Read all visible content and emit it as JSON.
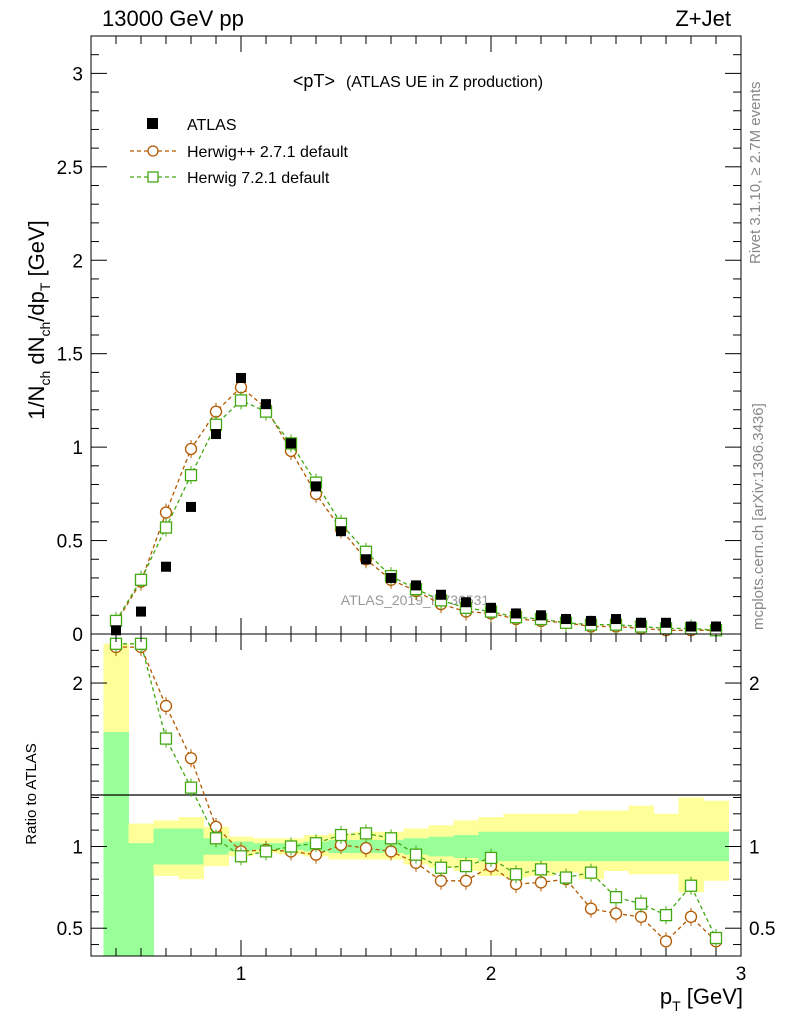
{
  "header": {
    "left_title": "13000 GeV pp",
    "right_title": "Z+Jet"
  },
  "side_labels": {
    "rivet": "Rivet 3.1.10, ≥ 2.7M events",
    "mcplots": "mcplots.cern.ch [arXiv:1306.3436]"
  },
  "colors": {
    "atlas": "#000000",
    "herwig_pp": "#b35900",
    "herwig7": "#44a814",
    "band_inner": "#99ff99",
    "band_outer": "#ffff99"
  },
  "chart_data": [
    {
      "type": "scatter",
      "panel": "main",
      "title": "<pT>",
      "subtitle": "(ATLAS UE in Z production)",
      "ylabel": {
        "base": "1/N",
        "sub1": "ch",
        "mid": " dN",
        "sub2": "ch",
        "mid2": "/dp",
        "sub3": "T",
        "unit": " [GeV]"
      },
      "xlim": [
        0.4,
        3.0
      ],
      "ylim": [
        0,
        3.2
      ],
      "yticks": [
        "0",
        "0.5",
        "1",
        "1.5",
        "2",
        "2.5",
        "3"
      ],
      "ytick_values": [
        0,
        0.5,
        1,
        1.5,
        2,
        2.5,
        3
      ],
      "watermark": "ATLAS_2019_I1736531",
      "legend": {
        "position": "top-left",
        "entries": [
          "ATLAS",
          "Herwig++ 2.7.1 default",
          "Herwig 7.2.1 default"
        ]
      },
      "x": [
        0.5,
        0.6,
        0.7,
        0.8,
        0.9,
        1.0,
        1.1,
        1.2,
        1.3,
        1.4,
        1.5,
        1.6,
        1.7,
        1.8,
        1.9,
        2.0,
        2.1,
        2.2,
        2.3,
        2.4,
        2.5,
        2.6,
        2.7,
        2.8,
        2.9
      ],
      "series": [
        {
          "name": "ATLAS",
          "values": [
            0.02,
            0.12,
            0.36,
            0.68,
            1.07,
            1.37,
            1.23,
            1.02,
            0.79,
            0.55,
            0.4,
            0.3,
            0.26,
            0.21,
            0.17,
            0.14,
            0.11,
            0.1,
            0.08,
            0.07,
            0.08,
            0.06,
            0.06,
            0.04,
            0.04
          ]
        },
        {
          "name": "Herwig++ 2.7.1 default",
          "values": [
            0.06,
            0.28,
            0.65,
            0.99,
            1.19,
            1.32,
            1.21,
            0.98,
            0.75,
            0.56,
            0.4,
            0.29,
            0.23,
            0.16,
            0.12,
            0.11,
            0.08,
            0.07,
            0.06,
            0.04,
            0.04,
            0.03,
            0.02,
            0.02,
            0.02
          ]
        },
        {
          "name": "Herwig 7.2.1 default",
          "values": [
            0.07,
            0.29,
            0.57,
            0.85,
            1.12,
            1.25,
            1.19,
            1.02,
            0.81,
            0.59,
            0.44,
            0.31,
            0.24,
            0.18,
            0.14,
            0.12,
            0.09,
            0.08,
            0.06,
            0.05,
            0.05,
            0.04,
            0.03,
            0.03,
            0.02
          ]
        }
      ]
    },
    {
      "type": "line",
      "panel": "ratio",
      "ylabel": "Ratio to ATLAS",
      "xlabel": {
        "base": "p",
        "sub": "T",
        "unit": " [GeV]"
      },
      "xlim": [
        0.4,
        3.0
      ],
      "ylim": [
        0.33,
        2.3
      ],
      "xticks": [
        "1",
        "2",
        "3"
      ],
      "xtick_values": [
        1,
        2,
        3
      ],
      "yticks": [
        "0.5",
        "1",
        "2"
      ],
      "ytick_values": [
        0.5,
        1,
        2
      ],
      "x": [
        0.5,
        0.6,
        0.7,
        0.8,
        0.9,
        1.0,
        1.1,
        1.2,
        1.3,
        1.4,
        1.5,
        1.6,
        1.7,
        1.8,
        1.9,
        2.0,
        2.1,
        2.2,
        2.3,
        2.4,
        2.5,
        2.6,
        2.7,
        2.8,
        2.9
      ],
      "bin_edges": [
        0.45,
        0.55,
        0.65,
        0.75,
        0.85,
        0.95,
        1.05,
        1.15,
        1.25,
        1.35,
        1.45,
        1.55,
        1.65,
        1.75,
        1.85,
        1.95,
        2.05,
        2.15,
        2.25,
        2.35,
        2.45,
        2.55,
        2.65,
        2.75,
        2.85,
        2.95
      ],
      "band_inner": {
        "lower": [
          0.33,
          0.33,
          0.89,
          0.89,
          0.95,
          0.97,
          0.98,
          0.98,
          0.97,
          0.96,
          0.96,
          0.96,
          0.95,
          0.94,
          0.93,
          0.91,
          0.91,
          0.91,
          0.91,
          0.91,
          0.91,
          0.91,
          0.91,
          0.91,
          0.91
        ],
        "upper": [
          1.7,
          1.02,
          1.11,
          1.11,
          1.05,
          1.03,
          1.02,
          1.02,
          1.03,
          1.04,
          1.04,
          1.04,
          1.05,
          1.06,
          1.07,
          1.09,
          1.09,
          1.09,
          1.09,
          1.09,
          1.09,
          1.09,
          1.09,
          1.09,
          1.09
        ]
      },
      "band_outer": {
        "lower": [
          0.33,
          0.33,
          0.82,
          0.8,
          0.88,
          0.94,
          0.96,
          0.95,
          0.94,
          0.92,
          0.92,
          0.92,
          0.89,
          0.87,
          0.85,
          0.82,
          0.81,
          0.82,
          0.84,
          0.8,
          0.85,
          0.83,
          0.83,
          0.72,
          0.79
        ],
        "upper": [
          2.24,
          1.14,
          1.16,
          1.18,
          1.12,
          1.06,
          1.05,
          1.05,
          1.07,
          1.08,
          1.09,
          1.09,
          1.11,
          1.13,
          1.16,
          1.18,
          1.2,
          1.2,
          1.2,
          1.22,
          1.22,
          1.25,
          1.2,
          1.3,
          1.28
        ]
      },
      "series": [
        {
          "name": "Herwig++ 2.7.1 default",
          "values": [
            2.22,
            2.22,
            1.86,
            1.54,
            1.12,
            0.97,
            0.98,
            0.97,
            0.95,
            1.01,
            0.99,
            0.97,
            0.9,
            0.79,
            0.79,
            0.88,
            0.77,
            0.78,
            0.8,
            0.62,
            0.59,
            0.57,
            0.42,
            0.57,
            0.42
          ]
        },
        {
          "name": "Herwig 7.2.1 default",
          "values": [
            2.24,
            2.24,
            1.66,
            1.36,
            1.05,
            0.94,
            0.97,
            1.0,
            1.02,
            1.07,
            1.08,
            1.05,
            0.95,
            0.87,
            0.88,
            0.93,
            0.83,
            0.86,
            0.81,
            0.84,
            0.69,
            0.65,
            0.58,
            0.76,
            0.44
          ]
        }
      ]
    }
  ]
}
